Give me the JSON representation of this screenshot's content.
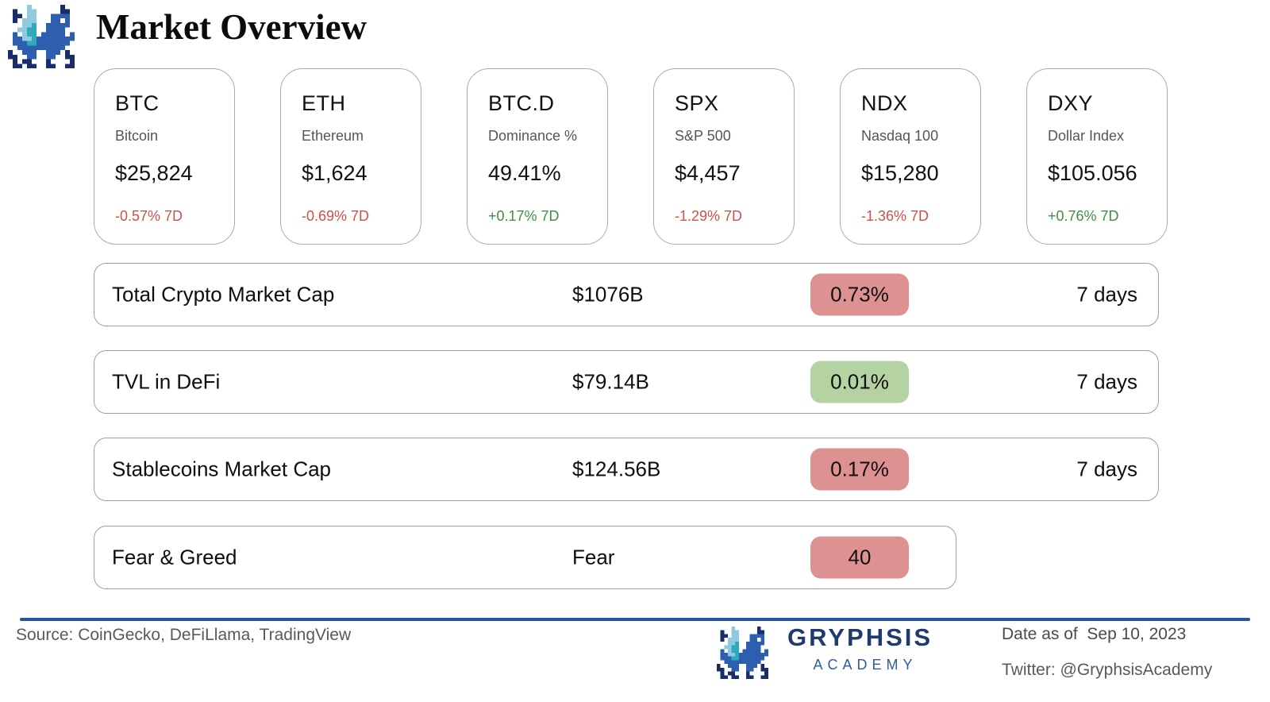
{
  "header": {
    "title": "Market Overview",
    "logo_icon": "pixel-dragon-icon"
  },
  "tickers": [
    {
      "symbol": "BTC",
      "name": "Bitcoin",
      "value": "$25,824",
      "change": "-0.57% 7D",
      "direction": "down"
    },
    {
      "symbol": "ETH",
      "name": "Ethereum",
      "value": "$1,624",
      "change": "-0.69% 7D",
      "direction": "down"
    },
    {
      "symbol": "BTC.D",
      "name": "Dominance %",
      "value": "49.41%",
      "change": "+0.17% 7D",
      "direction": "up"
    },
    {
      "symbol": "SPX",
      "name": "S&P 500",
      "value": "$4,457",
      "change": "-1.29% 7D",
      "direction": "down"
    },
    {
      "symbol": "NDX",
      "name": "Nasdaq 100",
      "value": "$15,280",
      "change": "-1.36% 7D",
      "direction": "down"
    },
    {
      "symbol": "DXY",
      "name": "Dollar Index",
      "value": "$105.056",
      "change": "+0.76% 7D",
      "direction": "up"
    }
  ],
  "metrics": [
    {
      "label": "Total Crypto Market Cap",
      "value": "$1076B",
      "badge": "0.73%",
      "badge_color": "red",
      "period": "7 days"
    },
    {
      "label": "TVL in DeFi",
      "value": "$79.14B",
      "badge": "0.01%",
      "badge_color": "green",
      "period": "7 days"
    },
    {
      "label": "Stablecoins Market Cap",
      "value": "$124.56B",
      "badge": "0.17%",
      "badge_color": "red",
      "period": "7 days"
    },
    {
      "label": "Fear & Greed",
      "value": "Fear",
      "badge": "40",
      "badge_color": "red",
      "period": ""
    }
  ],
  "footer": {
    "source": "Source: CoinGecko, DeFiLlama, TradingView",
    "brand_name": "GRYPHSIS",
    "brand_sub": "ACADEMY",
    "brand_logo_icon": "pixel-dragon-icon",
    "date_label": "Date as of  Sep 10, 2023",
    "twitter_label": "Twitter: @GryphsisAcademy"
  },
  "colors": {
    "badge_red": "#DD9191",
    "badge_green": "#B5D2A3",
    "change_red": "#CC514D",
    "change_green": "#3F9142",
    "brand_navy": "#1E3A6E",
    "brand_blue": "#2D5C9E",
    "divider_blue": "#2456A0"
  }
}
